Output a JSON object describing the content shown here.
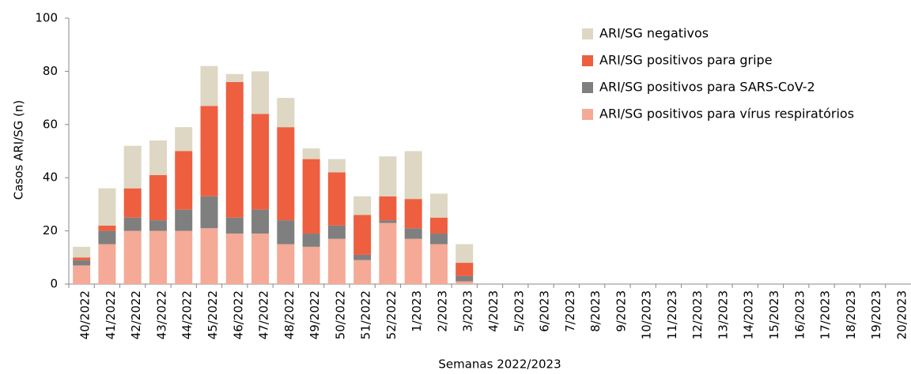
{
  "chart_data": {
    "type": "stacked_bar",
    "y_label": "Casos ARI/SG (n)",
    "x_label": "Semanas 2022/2023",
    "categories": [
      "40/2022",
      "41/2022",
      "42/2022",
      "43/2022",
      "44/2022",
      "45/2022",
      "46/2022",
      "47/2022",
      "48/2022",
      "49/2022",
      "50/2022",
      "51/2022",
      "52/2022",
      "1/2023",
      "2/2023",
      "3/2023",
      "4/2023",
      "5/2023",
      "6/2023",
      "7/2023",
      "8/2023",
      "9/2023",
      "10/2023",
      "11/2023",
      "12/2023",
      "13/2023",
      "14/2023",
      "15/2023",
      "16/2023",
      "17/2023",
      "18/2023",
      "19/2023",
      "20/2023"
    ],
    "series": [
      {
        "name": "ARI/SG positivos para vírus respiratórios",
        "color": "#f4aa96",
        "values": [
          7,
          15,
          20,
          20,
          20,
          21,
          19,
          19,
          15,
          14,
          17,
          9,
          23,
          17,
          15,
          1,
          null,
          null,
          null,
          null,
          null,
          null,
          null,
          null,
          null,
          null,
          null,
          null,
          null,
          null,
          null,
          null,
          null
        ]
      },
      {
        "name": "ARI/SG positivos para SARS-CoV-2",
        "color": "#7f7f7f",
        "values": [
          2,
          5,
          5,
          4,
          8,
          12,
          6,
          9,
          9,
          5,
          5,
          2,
          1,
          4,
          4,
          2,
          null,
          null,
          null,
          null,
          null,
          null,
          null,
          null,
          null,
          null,
          null,
          null,
          null,
          null,
          null,
          null,
          null
        ]
      },
      {
        "name": "ARI/SG positivos para gripe",
        "color": "#ee5f40",
        "values": [
          1,
          2,
          11,
          17,
          22,
          34,
          51,
          36,
          35,
          28,
          20,
          15,
          9,
          11,
          6,
          5,
          null,
          null,
          null,
          null,
          null,
          null,
          null,
          null,
          null,
          null,
          null,
          null,
          null,
          null,
          null,
          null,
          null
        ]
      },
      {
        "name": "ARI/SG negativos",
        "color": "#ddd7c4",
        "values": [
          4,
          14,
          16,
          13,
          9,
          15,
          3,
          16,
          11,
          4,
          5,
          7,
          15,
          18,
          9,
          7,
          null,
          null,
          null,
          null,
          null,
          null,
          null,
          null,
          null,
          null,
          null,
          null,
          null,
          null,
          null,
          null,
          null
        ]
      }
    ],
    "ylim": [
      0,
      100
    ],
    "yticks": [
      0,
      20,
      40,
      60,
      80,
      100
    ],
    "grid": false,
    "legend": "top-right"
  }
}
